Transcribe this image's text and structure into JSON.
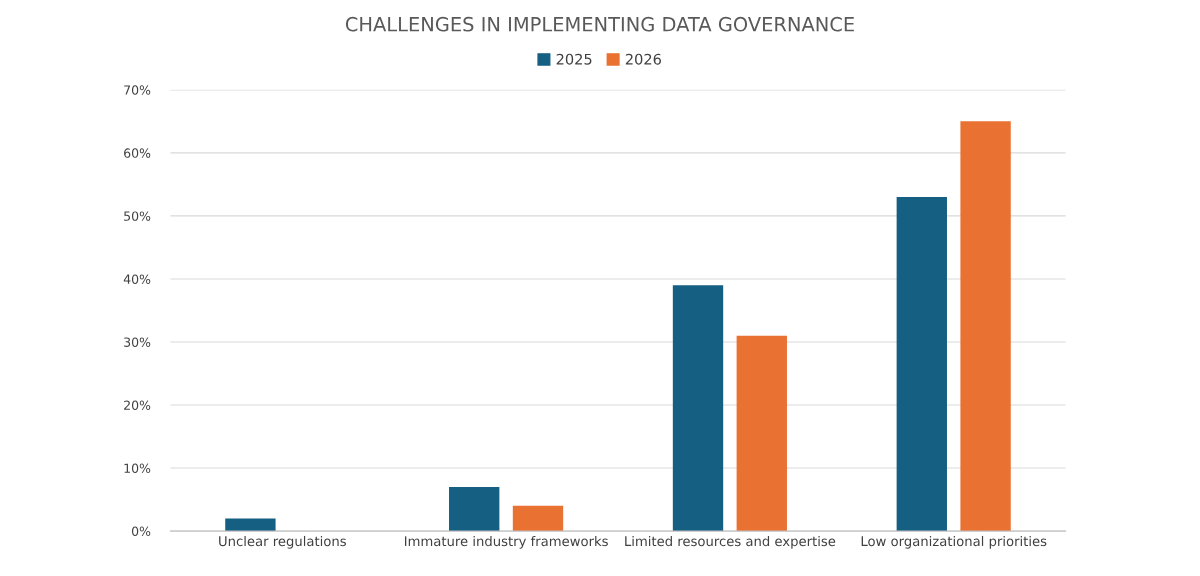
{
  "chart_data": {
    "type": "bar",
    "title": "CHALLENGES IN IMPLEMENTING DATA GOVERNANCE",
    "categories": [
      "Unclear regulations",
      "Immature industry frameworks",
      "Limited resources and expertise",
      "Low organizational priorities"
    ],
    "series": [
      {
        "name": "2025",
        "color": "#155f82",
        "values": [
          2,
          7,
          39,
          53
        ]
      },
      {
        "name": "2026",
        "color": "#e97132",
        "values": [
          0,
          4,
          31,
          65
        ]
      }
    ],
    "ylim": [
      0,
      70
    ],
    "yticks": [
      {
        "value": 0,
        "label": "0%"
      },
      {
        "value": 10,
        "label": "10%"
      },
      {
        "value": 20,
        "label": "20%"
      },
      {
        "value": 30,
        "label": "30%"
      },
      {
        "value": 40,
        "label": "40%"
      },
      {
        "value": 50,
        "label": "50%"
      },
      {
        "value": 60,
        "label": "60%"
      },
      {
        "value": 70,
        "label": "70%"
      }
    ],
    "grid": "y",
    "legend": "top"
  }
}
